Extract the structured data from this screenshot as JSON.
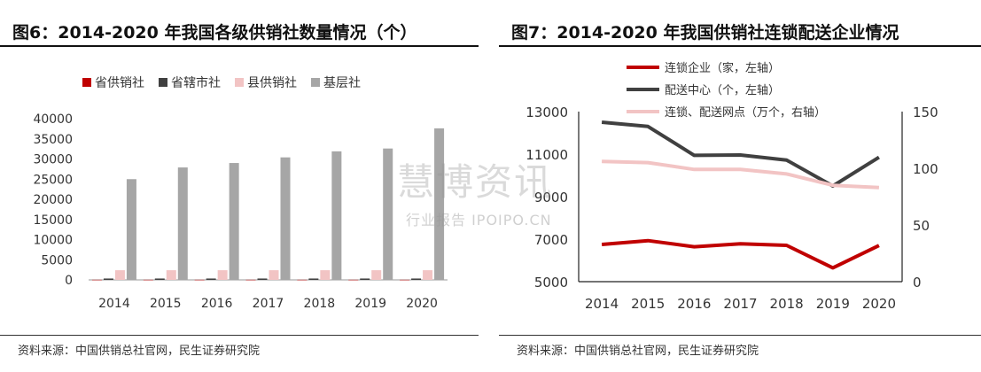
{
  "left": {
    "title": "图6：2014-2020 年我国各级供销社数量情况（个）",
    "source": "资料来源：中国供销总社官网，民生证券研究院"
  },
  "right": {
    "title": "图7：2014-2020 年我国供销社连锁配送企业情况",
    "source": "资料来源：中国供销总社官网，民生证券研究院"
  },
  "watermark": {
    "main": "慧博资讯",
    "sub": "行业报告 IPOIPO.CN"
  },
  "chart_data": [
    {
      "type": "bar",
      "categories": [
        "2014",
        "2015",
        "2016",
        "2017",
        "2018",
        "2019",
        "2020"
      ],
      "ylim": [
        0,
        40000
      ],
      "yticks": [
        0,
        5000,
        10000,
        15000,
        20000,
        25000,
        30000,
        35000,
        40000
      ],
      "legend_position": "top",
      "grid": false,
      "series": [
        {
          "name": "省供销社",
          "color": "#c00000",
          "values": [
            32,
            32,
            32,
            32,
            32,
            32,
            32
          ]
        },
        {
          "name": "省辖市社",
          "color": "#404040",
          "values": [
            340,
            340,
            340,
            340,
            340,
            340,
            340
          ]
        },
        {
          "name": "县供销社",
          "color": "#f2c4c4",
          "values": [
            2400,
            2400,
            2400,
            2400,
            2400,
            2400,
            2400
          ]
        },
        {
          "name": "基层社",
          "color": "#a6a6a6",
          "values": [
            25000,
            27900,
            29000,
            30400,
            31900,
            32600,
            37600
          ]
        }
      ]
    },
    {
      "type": "line",
      "x": [
        "2014",
        "2015",
        "2016",
        "2017",
        "2018",
        "2019",
        "2020"
      ],
      "ylim": [
        5000,
        13000
      ],
      "yticks": [
        5000,
        7000,
        9000,
        11000,
        13000
      ],
      "y2lim": [
        0,
        150
      ],
      "y2ticks": [
        0,
        50,
        100,
        150
      ],
      "legend_position": "top-left",
      "grid": false,
      "series": [
        {
          "name": "连锁企业（家，左轴）",
          "axis": "left",
          "color": "#c00000",
          "values": [
            6750,
            6930,
            6640,
            6780,
            6710,
            5650,
            6700
          ]
        },
        {
          "name": "配送中心（个，左轴）",
          "axis": "left",
          "color": "#404040",
          "values": [
            12500,
            12300,
            10940,
            10960,
            10720,
            9500,
            10850
          ]
        },
        {
          "name": "连锁、配送网点（万个，右轴）",
          "axis": "right",
          "color": "#f2c4c4",
          "values": [
            106,
            105,
            99,
            99,
            95,
            85,
            83
          ]
        }
      ]
    }
  ]
}
